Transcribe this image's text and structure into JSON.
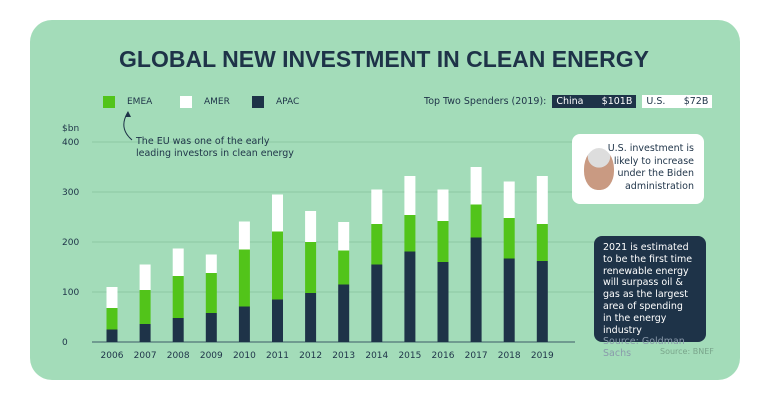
{
  "title": "GLOBAL NEW INVESTMENT IN CLEAN ENERGY",
  "legend": [
    {
      "label": "EMEA",
      "color": "#52c41a"
    },
    {
      "label": "AMER",
      "color": "#ffffff"
    },
    {
      "label": "APAC",
      "color": "#1e3348"
    }
  ],
  "top_spenders": {
    "label": "Top Two Spenders (2019):",
    "items": [
      {
        "country": "China",
        "amount": "$101B"
      },
      {
        "country": "U.S.",
        "amount": "$72B"
      }
    ]
  },
  "annotations": {
    "eu_note_line1": "The EU was one of the early",
    "eu_note_line2": "leading investors in clean energy",
    "biden_note": [
      "U.S. investment is",
      "likely to increase",
      "under the Biden",
      "administration"
    ],
    "forecast_note": [
      "2021 is estimated",
      "to be the first time",
      "renewable energy",
      "will surpass oil &",
      "gas as the largest",
      "area of spending",
      "in the energy industry"
    ],
    "forecast_source": "Source: Goldman Sachs",
    "source": "Source: BNEF"
  },
  "chart_data": {
    "type": "bar",
    "stacked": true,
    "title": "GLOBAL NEW INVESTMENT IN CLEAN ENERGY",
    "ylabel": "$bn",
    "ylim": [
      0,
      400
    ],
    "yticks": [
      0,
      100,
      200,
      300,
      400
    ],
    "grid": true,
    "legend_position": "top-left",
    "categories": [
      "2006",
      "2007",
      "2008",
      "2009",
      "2010",
      "2011",
      "2012",
      "2013",
      "2014",
      "2015",
      "2016",
      "2017",
      "2018",
      "2019"
    ],
    "series": [
      {
        "name": "APAC",
        "color": "#1e3348",
        "values": [
          25,
          36,
          48,
          58,
          71,
          85,
          98,
          115,
          155,
          181,
          160,
          209,
          167,
          162
        ]
      },
      {
        "name": "EMEA",
        "color": "#52c41a",
        "values": [
          43,
          68,
          84,
          80,
          114,
          136,
          102,
          68,
          81,
          73,
          82,
          66,
          81,
          74
        ]
      },
      {
        "name": "AMER",
        "color": "#ffffff",
        "values": [
          42,
          51,
          55,
          37,
          56,
          74,
          62,
          57,
          69,
          78,
          63,
          75,
          73,
          96
        ]
      }
    ]
  }
}
